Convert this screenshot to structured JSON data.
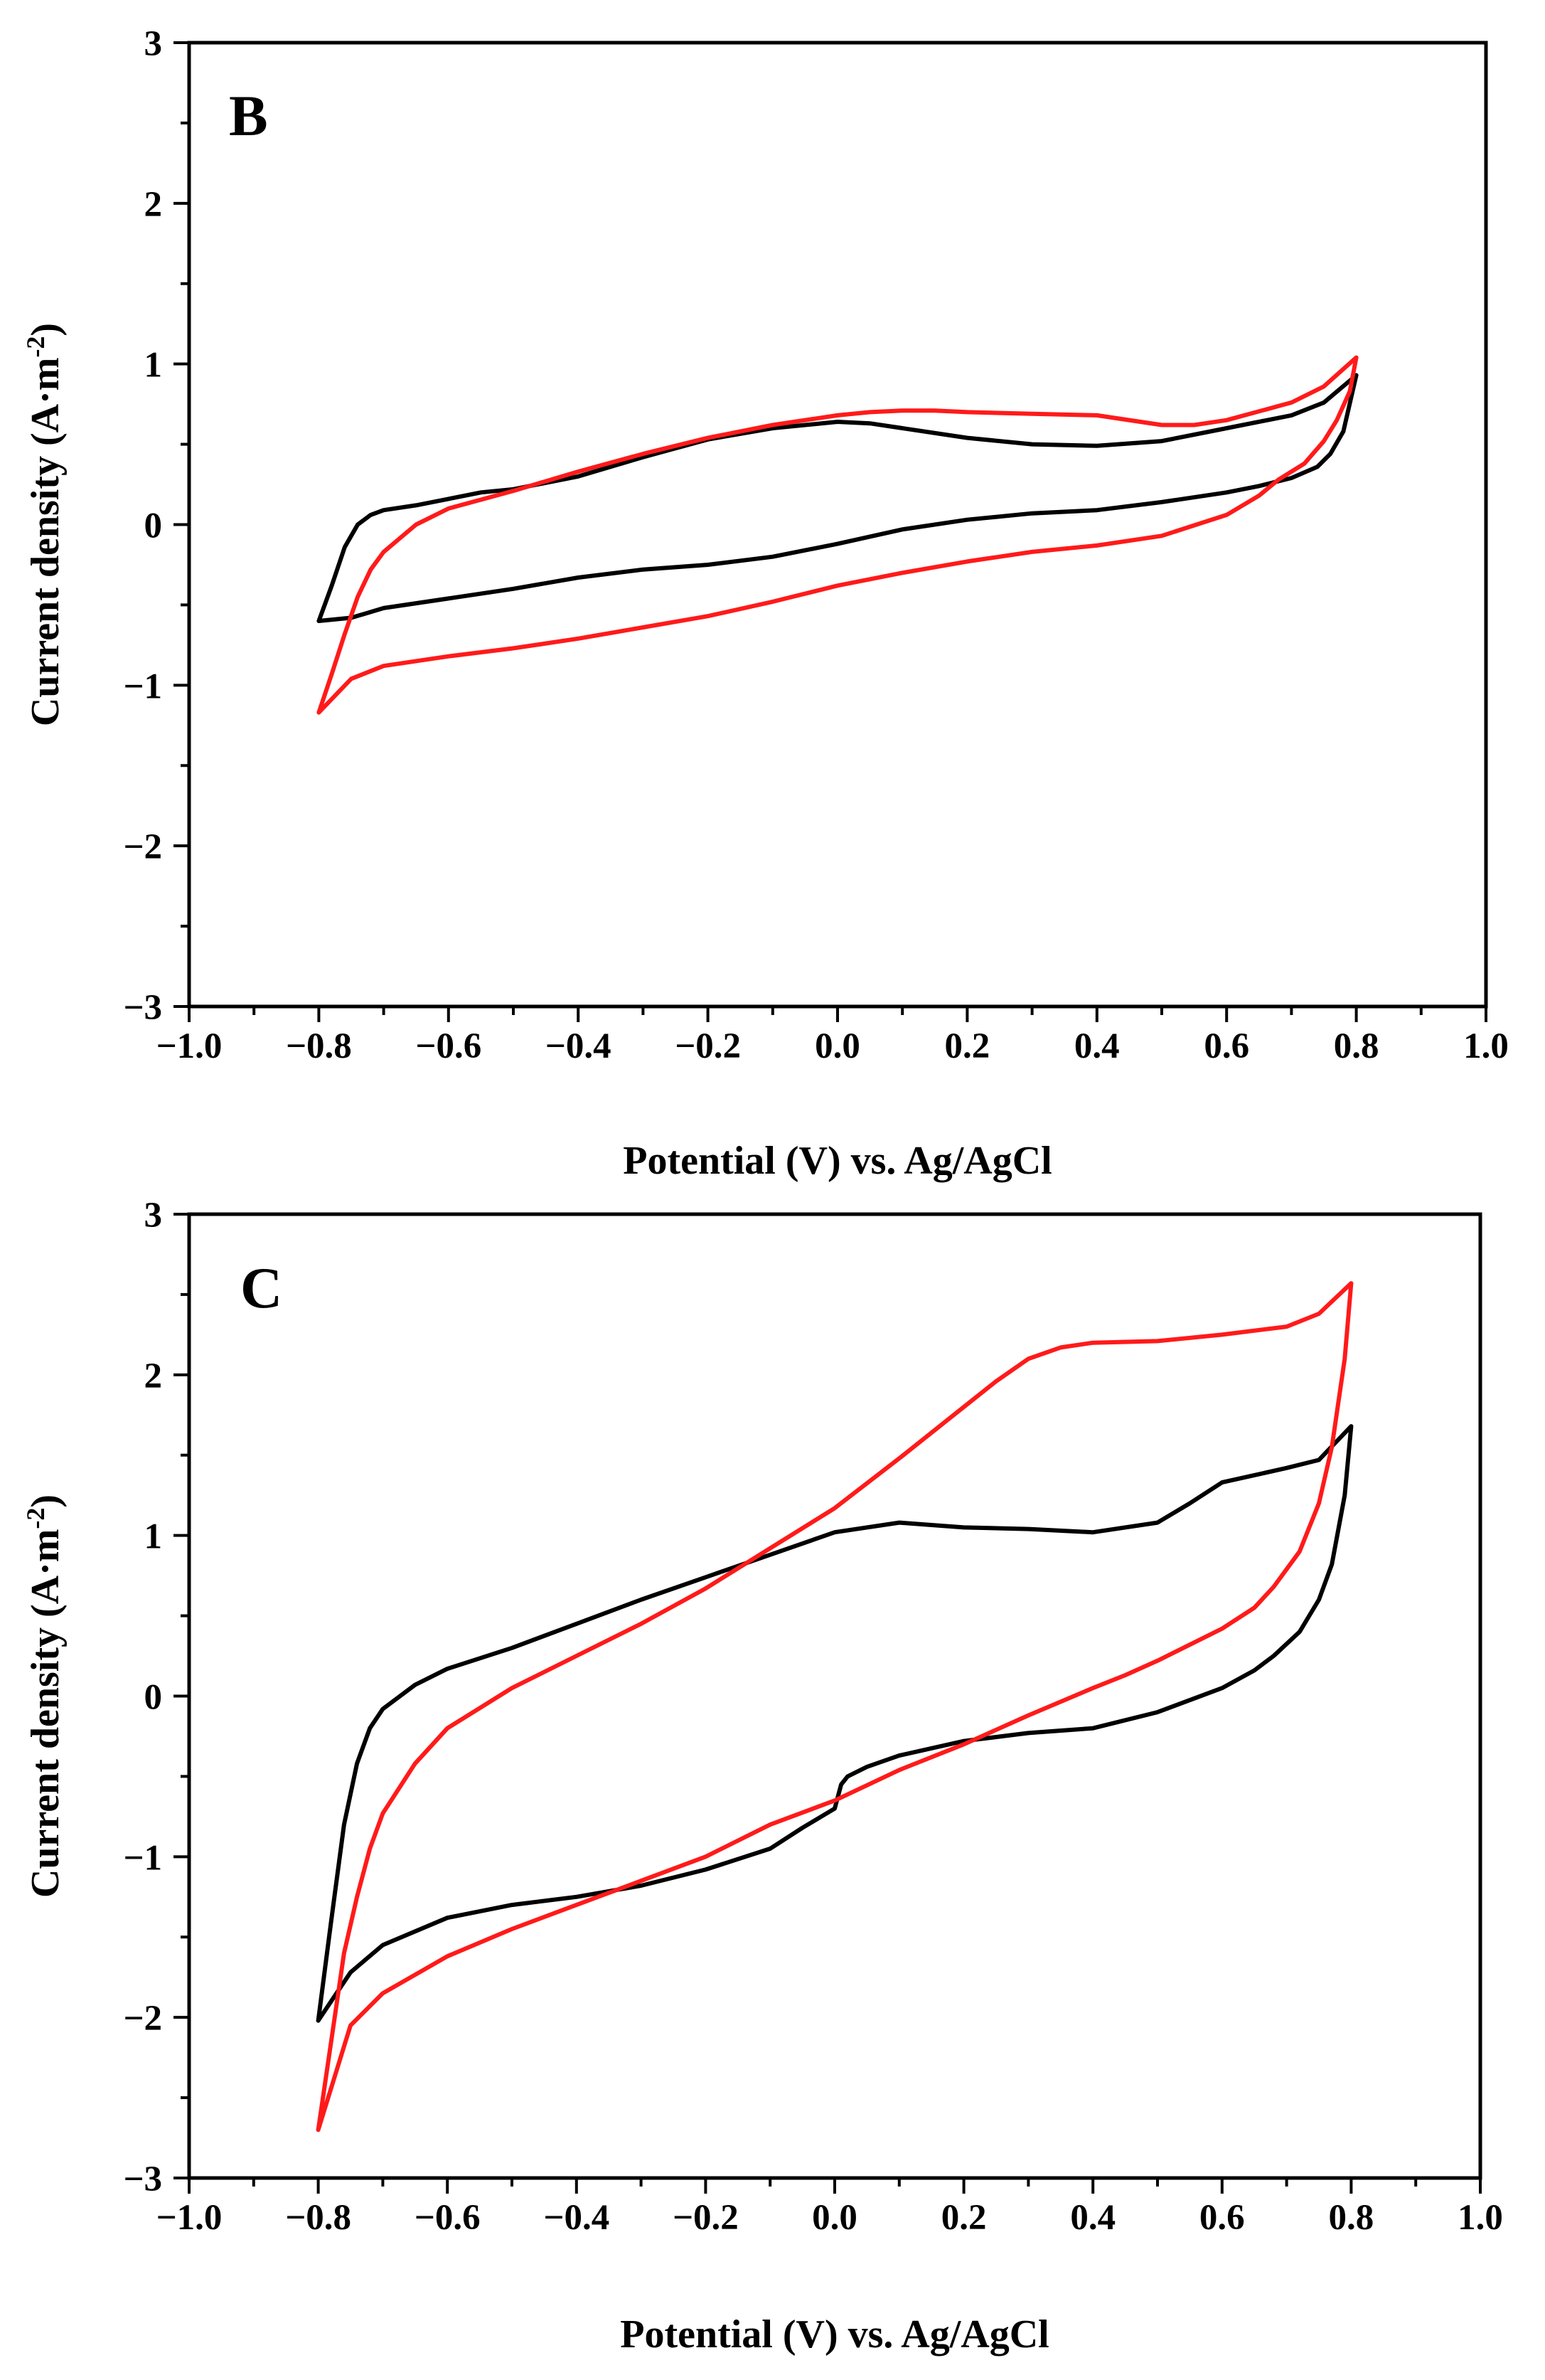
{
  "chart_data": [
    {
      "type": "line",
      "panel_label": "B",
      "xlabel": "Potential (V) vs. Ag/AgCl",
      "ylabel": "Current density (A·m",
      "ylabel_sup": "-2",
      "ylabel_close": ")",
      "xlim": [
        -1.0,
        1.0
      ],
      "ylim": [
        -3,
        3
      ],
      "xticks": [
        -1.0,
        -0.8,
        -0.6,
        -0.4,
        -0.2,
        0.0,
        0.2,
        0.4,
        0.6,
        0.8,
        1.0
      ],
      "xtick_labels": [
        "−1.0",
        "−0.8",
        "−0.6",
        "−0.4",
        "−0.2",
        "0.0",
        "0.2",
        "0.4",
        "0.6",
        "0.8",
        "1.0"
      ],
      "yticks": [
        -3,
        -2,
        -1,
        0,
        1,
        2,
        3
      ],
      "ytick_labels": [
        "−3",
        "−2",
        "−1",
        "0",
        "1",
        "2",
        "3"
      ],
      "colors": {
        "series_1": "#000000",
        "series_2": "#ff1a1a"
      },
      "series": [
        {
          "name": "series_1",
          "x": [
            -0.8,
            -0.78,
            -0.76,
            -0.74,
            -0.72,
            -0.7,
            -0.65,
            -0.6,
            -0.55,
            -0.5,
            -0.4,
            -0.3,
            -0.2,
            -0.1,
            0.0,
            0.05,
            0.1,
            0.2,
            0.3,
            0.4,
            0.5,
            0.6,
            0.7,
            0.75,
            0.8,
            0.8,
            0.78,
            0.76,
            0.74,
            0.7,
            0.65,
            0.6,
            0.5,
            0.4,
            0.3,
            0.2,
            0.1,
            0.0,
            -0.1,
            -0.2,
            -0.3,
            -0.4,
            -0.5,
            -0.6,
            -0.7,
            -0.75,
            -0.8
          ],
          "y": [
            -0.6,
            -0.38,
            -0.14,
            0.0,
            0.06,
            0.09,
            0.12,
            0.16,
            0.2,
            0.22,
            0.3,
            0.42,
            0.53,
            0.6,
            0.64,
            0.63,
            0.6,
            0.54,
            0.5,
            0.49,
            0.52,
            0.6,
            0.68,
            0.76,
            0.93,
            0.93,
            0.58,
            0.44,
            0.36,
            0.29,
            0.24,
            0.2,
            0.14,
            0.09,
            0.07,
            0.03,
            -0.03,
            -0.12,
            -0.2,
            -0.25,
            -0.28,
            -0.33,
            -0.4,
            -0.46,
            -0.52,
            -0.58,
            -0.6
          ]
        },
        {
          "name": "series_2",
          "x": [
            -0.8,
            -0.78,
            -0.76,
            -0.74,
            -0.72,
            -0.7,
            -0.65,
            -0.6,
            -0.5,
            -0.4,
            -0.3,
            -0.2,
            -0.1,
            0.0,
            0.05,
            0.1,
            0.15,
            0.2,
            0.3,
            0.4,
            0.5,
            0.55,
            0.6,
            0.7,
            0.75,
            0.8,
            0.8,
            0.79,
            0.77,
            0.75,
            0.72,
            0.68,
            0.65,
            0.6,
            0.5,
            0.4,
            0.3,
            0.2,
            0.1,
            0.0,
            -0.1,
            -0.2,
            -0.3,
            -0.4,
            -0.5,
            -0.6,
            -0.7,
            -0.75,
            -0.8
          ],
          "y": [
            -1.17,
            -0.93,
            -0.68,
            -0.45,
            -0.28,
            -0.17,
            0.0,
            0.1,
            0.21,
            0.33,
            0.44,
            0.54,
            0.62,
            0.68,
            0.7,
            0.71,
            0.71,
            0.7,
            0.69,
            0.68,
            0.62,
            0.62,
            0.65,
            0.76,
            0.86,
            1.04,
            1.04,
            0.83,
            0.65,
            0.52,
            0.38,
            0.28,
            0.18,
            0.06,
            -0.07,
            -0.13,
            -0.17,
            -0.23,
            -0.3,
            -0.38,
            -0.48,
            -0.57,
            -0.64,
            -0.71,
            -0.77,
            -0.82,
            -0.88,
            -0.96,
            -1.17
          ]
        }
      ]
    },
    {
      "type": "line",
      "panel_label": "C",
      "xlabel": "Potential (V) vs. Ag/AgCl",
      "ylabel": "Current density (A·m",
      "ylabel_sup": "-2",
      "ylabel_close": ")",
      "xlim": [
        -1.0,
        1.0
      ],
      "ylim": [
        -3,
        3
      ],
      "xticks": [
        -1.0,
        -0.8,
        -0.6,
        -0.4,
        -0.2,
        0.0,
        0.2,
        0.4,
        0.6,
        0.8,
        1.0
      ],
      "xtick_labels": [
        "−1.0",
        "−0.8",
        "−0.6",
        "−0.4",
        "−0.2",
        "0.0",
        "0.2",
        "0.4",
        "0.6",
        "0.8",
        "1.0"
      ],
      "yticks": [
        -3,
        -2,
        -1,
        0,
        1,
        2,
        3
      ],
      "ytick_labels": [
        "−3",
        "−2",
        "−1",
        "0",
        "1",
        "2",
        "3"
      ],
      "colors": {
        "series_1": "#000000",
        "series_2": "#ff1a1a"
      },
      "series": [
        {
          "name": "series_1",
          "x": [
            -0.8,
            -0.78,
            -0.76,
            -0.74,
            -0.72,
            -0.7,
            -0.65,
            -0.6,
            -0.5,
            -0.4,
            -0.3,
            -0.2,
            -0.1,
            0.0,
            0.1,
            0.2,
            0.3,
            0.4,
            0.5,
            0.55,
            0.6,
            0.7,
            0.75,
            0.8,
            0.8,
            0.79,
            0.77,
            0.75,
            0.72,
            0.68,
            0.65,
            0.6,
            0.5,
            0.4,
            0.3,
            0.2,
            0.1,
            0.05,
            0.02,
            0.01,
            0.0,
            -0.05,
            -0.1,
            -0.2,
            -0.3,
            -0.4,
            -0.5,
            -0.6,
            -0.7,
            -0.75,
            -0.8
          ],
          "y": [
            -2.02,
            -1.4,
            -0.8,
            -0.42,
            -0.2,
            -0.08,
            0.07,
            0.17,
            0.3,
            0.45,
            0.6,
            0.74,
            0.88,
            1.02,
            1.08,
            1.05,
            1.04,
            1.02,
            1.08,
            1.2,
            1.33,
            1.42,
            1.47,
            1.68,
            1.68,
            1.25,
            0.82,
            0.6,
            0.4,
            0.25,
            0.16,
            0.05,
            -0.1,
            -0.2,
            -0.23,
            -0.28,
            -0.37,
            -0.44,
            -0.5,
            -0.55,
            -0.7,
            -0.82,
            -0.95,
            -1.08,
            -1.18,
            -1.25,
            -1.3,
            -1.38,
            -1.55,
            -1.72,
            -2.02
          ]
        },
        {
          "name": "series_2",
          "x": [
            -0.8,
            -0.78,
            -0.76,
            -0.74,
            -0.72,
            -0.7,
            -0.65,
            -0.6,
            -0.5,
            -0.4,
            -0.3,
            -0.2,
            -0.1,
            0.0,
            0.1,
            0.2,
            0.25,
            0.3,
            0.35,
            0.4,
            0.5,
            0.6,
            0.7,
            0.75,
            0.8,
            0.8,
            0.79,
            0.77,
            0.75,
            0.72,
            0.68,
            0.65,
            0.6,
            0.5,
            0.45,
            0.4,
            0.3,
            0.2,
            0.1,
            0.0,
            -0.1,
            -0.2,
            -0.3,
            -0.4,
            -0.5,
            -0.6,
            -0.7,
            -0.75,
            -0.8
          ],
          "y": [
            -2.7,
            -2.15,
            -1.6,
            -1.25,
            -0.95,
            -0.73,
            -0.42,
            -0.2,
            0.05,
            0.25,
            0.45,
            0.67,
            0.92,
            1.17,
            1.48,
            1.8,
            1.96,
            2.1,
            2.17,
            2.2,
            2.21,
            2.25,
            2.3,
            2.38,
            2.57,
            2.57,
            2.1,
            1.55,
            1.2,
            0.9,
            0.68,
            0.55,
            0.42,
            0.22,
            0.13,
            0.05,
            -0.12,
            -0.3,
            -0.46,
            -0.65,
            -0.8,
            -1.0,
            -1.15,
            -1.3,
            -1.45,
            -1.62,
            -1.85,
            -2.05,
            -2.7
          ]
        }
      ]
    }
  ]
}
